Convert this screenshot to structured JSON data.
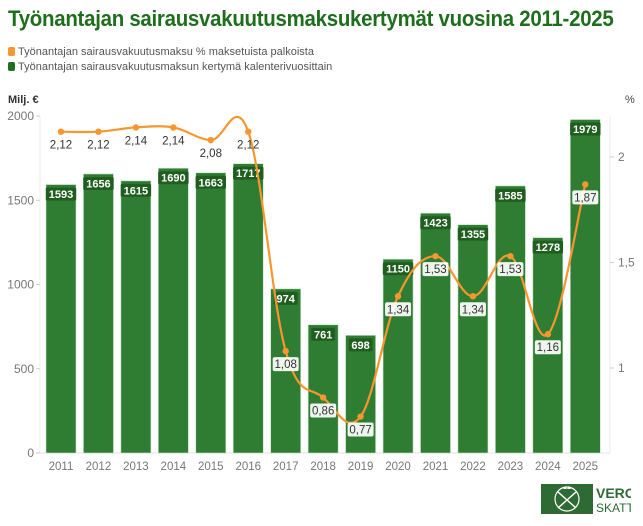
{
  "title": "Työnantajan sairausvakuutusmaksukertymät vuosina 2011-2025",
  "legend": [
    {
      "label": "Työnantajan sairausvakuutusmaksu % maksetuista palkoista",
      "color": "#f7962e"
    },
    {
      "label": "Työnantajan sairausvakuutusmaksun kertymä kalenterivuosittain",
      "color": "#1f6f1f"
    }
  ],
  "axes": {
    "left_title": "Milj. €",
    "right_title": "%",
    "left_ticks": [
      "0",
      "500",
      "1000",
      "1500",
      "2000"
    ],
    "right_ticks": [
      "1",
      "1,5",
      "2"
    ]
  },
  "logo": {
    "line1": "VERO",
    "line2": "SKATT"
  },
  "colors": {
    "bar": "#2e7d32",
    "line": "#f7962e",
    "title": "#1e6e1e",
    "label_bg": "#1f5e1f"
  },
  "chart_data": {
    "type": "bar",
    "title": "Työnantajan sairausvakuutusmaksukertymät vuosina 2011-2025",
    "categories": [
      "2011",
      "2012",
      "2013",
      "2014",
      "2015",
      "2016",
      "2017",
      "2018",
      "2019",
      "2020",
      "2021",
      "2022",
      "2023",
      "2024",
      "2025"
    ],
    "series": [
      {
        "name": "Työnantajan sairausvakuutusmaksun kertymä kalenterivuosittain",
        "type": "bar",
        "axis": "left",
        "values": [
          1593,
          1656,
          1615,
          1690,
          1663,
          1717,
          974,
          761,
          698,
          1150,
          1423,
          1355,
          1585,
          1278,
          1979
        ]
      },
      {
        "name": "Työnantajan sairausvakuutusmaksu % maksetuista palkoista",
        "type": "line",
        "axis": "right",
        "values": [
          2.12,
          2.12,
          2.14,
          2.14,
          2.08,
          2.12,
          1.08,
          0.86,
          0.77,
          1.34,
          1.53,
          1.34,
          1.53,
          1.16,
          1.87
        ],
        "labels": [
          "2,12",
          "2,12",
          "2,14",
          "2,14",
          "2,08",
          "2,12",
          "1,08",
          "0,86",
          "0,77",
          "1,34",
          "1,53",
          "1,34",
          "1,53",
          "1,16",
          "1,87"
        ]
      }
    ],
    "xlabel": "",
    "ylabel": "Milj. €",
    "y2label": "%",
    "ylim": [
      0,
      2000
    ],
    "y2lim": [
      0.6,
      2.2
    ],
    "grid": false,
    "legend_position": "top-left"
  }
}
